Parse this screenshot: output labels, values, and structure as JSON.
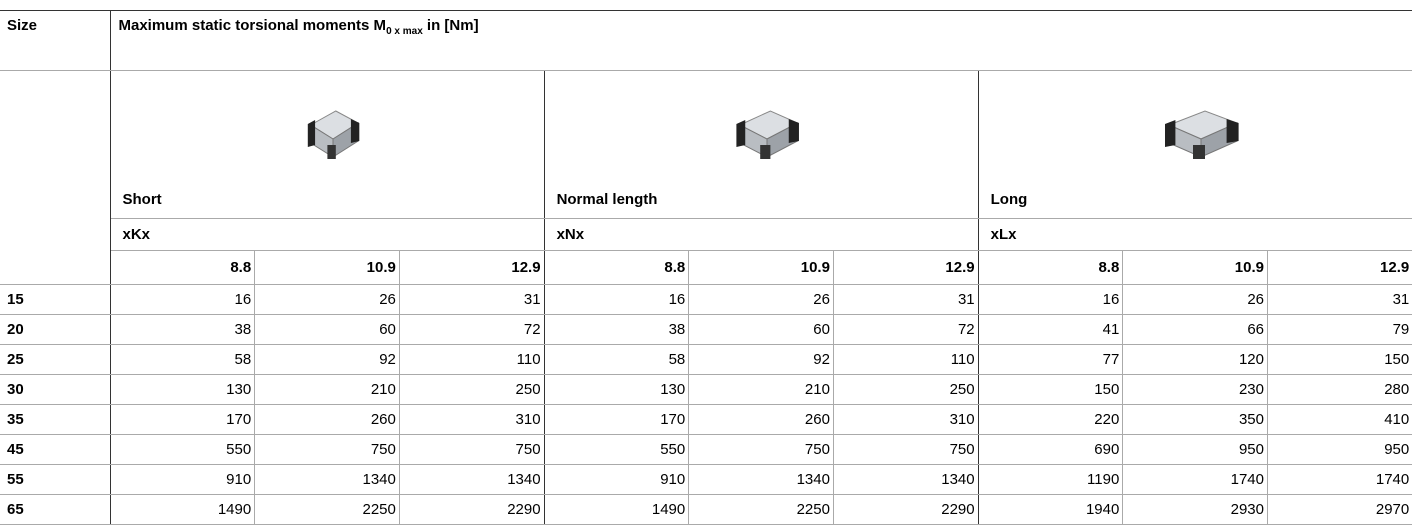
{
  "header": {
    "size_label": "Size",
    "title": "Maximum static torsional moments M",
    "title_sub": "0 x max",
    "title_suffix": " in [Nm]"
  },
  "groups": [
    {
      "name": "Short",
      "code": "xKx",
      "grades": [
        "8.8",
        "10.9",
        "12.9"
      ]
    },
    {
      "name": "Normal length",
      "code": "xNx",
      "grades": [
        "8.8",
        "10.9",
        "12.9"
      ]
    },
    {
      "name": "Long",
      "code": "xLx",
      "grades": [
        "8.8",
        "10.9",
        "12.9"
      ]
    }
  ],
  "rows": [
    {
      "size": 15,
      "values": [
        16,
        26,
        31,
        16,
        26,
        31,
        16,
        26,
        31
      ]
    },
    {
      "size": 20,
      "values": [
        38,
        60,
        72,
        38,
        60,
        72,
        41,
        66,
        79
      ]
    },
    {
      "size": 25,
      "values": [
        58,
        92,
        110,
        58,
        92,
        110,
        77,
        120,
        150
      ]
    },
    {
      "size": 30,
      "values": [
        130,
        210,
        250,
        130,
        210,
        250,
        150,
        230,
        280
      ]
    },
    {
      "size": 35,
      "values": [
        170,
        260,
        310,
        170,
        260,
        310,
        220,
        350,
        410
      ]
    },
    {
      "size": 45,
      "values": [
        550,
        750,
        750,
        550,
        750,
        750,
        690,
        950,
        950
      ]
    },
    {
      "size": 55,
      "values": [
        910,
        1340,
        1340,
        910,
        1340,
        1340,
        1190,
        1740,
        1740
      ]
    },
    {
      "size": 65,
      "values": [
        1490,
        2250,
        2290,
        1490,
        2250,
        2290,
        1940,
        2930,
        2970
      ]
    }
  ]
}
